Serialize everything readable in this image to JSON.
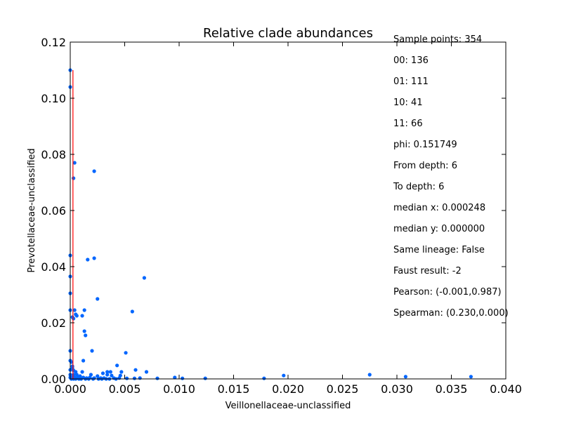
{
  "chart_data": {
    "type": "scatter",
    "title": "Relative clade abundances",
    "xlabel": "Veillonellaceae-unclassified",
    "ylabel": "Prevotellaceae-unclassified",
    "xlim": [
      0.0,
      0.04
    ],
    "ylim": [
      0.0,
      0.12
    ],
    "x_ticks": [
      "0.000",
      "0.005",
      "0.010",
      "0.015",
      "0.020",
      "0.025",
      "0.030",
      "0.035",
      "0.040"
    ],
    "y_ticks": [
      "0.00",
      "0.02",
      "0.04",
      "0.06",
      "0.08",
      "0.10",
      "0.12"
    ],
    "grid": false,
    "point_color": "#0066ff",
    "median_line_color": "#ff0000",
    "median_x": 0.000248,
    "annotations": [
      "Sample points: 354",
      "00: 136",
      "01: 111",
      "10: 41",
      "11: 66",
      "phi: 0.151749",
      "From depth: 6",
      "To depth: 6",
      "median x: 0.000248",
      "median y: 0.000000",
      "Same lineage: False",
      "Faust result: -2",
      "Pearson: (-0.001,0.987)",
      "Spearman: (0.230,0.000)"
    ],
    "points": [
      [
        0.0,
        0.11
      ],
      [
        0.0,
        0.104
      ],
      [
        0.0004,
        0.077
      ],
      [
        0.0003,
        0.0715
      ],
      [
        0.0022,
        0.074
      ],
      [
        0.0,
        0.044
      ],
      [
        0.0,
        0.0365
      ],
      [
        0.0,
        0.0305
      ],
      [
        0.0022,
        0.043
      ],
      [
        0.0016,
        0.0425
      ],
      [
        0.0068,
        0.036
      ],
      [
        0.0025,
        0.0285
      ],
      [
        0.0,
        0.0245
      ],
      [
        0.0004,
        0.0245
      ],
      [
        0.0013,
        0.0245
      ],
      [
        0.0057,
        0.024
      ],
      [
        0.0005,
        0.023
      ],
      [
        0.0006,
        0.0225
      ],
      [
        0.0011,
        0.0225
      ],
      [
        0.0002,
        0.022
      ],
      [
        0.0003,
        0.0215
      ],
      [
        0.0013,
        0.017
      ],
      [
        0.0014,
        0.0155
      ],
      [
        0.0,
        0.01
      ],
      [
        0.002,
        0.01
      ],
      [
        0.0051,
        0.0093
      ],
      [
        0.0,
        0.0065
      ],
      [
        0.0001,
        0.006
      ],
      [
        0.0012,
        0.0065
      ],
      [
        0.0043,
        0.0048
      ],
      [
        0.0002,
        0.0045
      ],
      [
        0.0002,
        0.0038
      ],
      [
        0.0,
        0.0032
      ],
      [
        0.0003,
        0.003
      ],
      [
        0.0005,
        0.0025
      ],
      [
        0.0011,
        0.0025
      ],
      [
        0.003,
        0.002
      ],
      [
        0.0034,
        0.0025
      ],
      [
        0.0037,
        0.0025
      ],
      [
        0.0047,
        0.0025
      ],
      [
        0.006,
        0.0032
      ],
      [
        0.007,
        0.0025
      ],
      [
        0.0,
        0.0015
      ],
      [
        0.0003,
        0.0015
      ],
      [
        0.0006,
        0.0015
      ],
      [
        0.0009,
        0.001
      ],
      [
        0.0019,
        0.0015
      ],
      [
        0.0025,
        0.001
      ],
      [
        0.0034,
        0.0015
      ],
      [
        0.0038,
        0.0012
      ],
      [
        0.0046,
        0.0012
      ],
      [
        0.0,
        0.0005
      ],
      [
        0.0002,
        0.0005
      ],
      [
        0.0004,
        0.0005
      ],
      [
        0.0007,
        0.0005
      ],
      [
        0.0012,
        0.0005
      ],
      [
        0.0015,
        0.0003
      ],
      [
        0.0018,
        0.0005
      ],
      [
        0.0022,
        0.0003
      ],
      [
        0.0028,
        0.0003
      ],
      [
        0.0031,
        0.0003
      ],
      [
        0.004,
        0.0003
      ],
      [
        0.0045,
        0.0003
      ],
      [
        0.0052,
        0.0002
      ],
      [
        0.0059,
        0.0002
      ],
      [
        0.0064,
        0.0003
      ],
      [
        0.008,
        0.0002
      ],
      [
        0.0096,
        0.0005
      ],
      [
        0.0103,
        0.0002
      ],
      [
        0.0124,
        0.0002
      ],
      [
        0.0178,
        0.0002
      ],
      [
        0.0196,
        0.0012
      ],
      [
        0.0275,
        0.0015
      ],
      [
        0.0308,
        0.0008
      ],
      [
        0.0368,
        0.0008
      ],
      [
        0.0001,
        0.0
      ],
      [
        0.0003,
        0.0
      ],
      [
        0.0005,
        0.0
      ],
      [
        0.0008,
        0.0
      ],
      [
        0.001,
        0.0
      ],
      [
        0.0014,
        0.0
      ],
      [
        0.0017,
        0.0
      ],
      [
        0.0021,
        0.0
      ],
      [
        0.0026,
        0.0
      ],
      [
        0.0029,
        0.0
      ],
      [
        0.0033,
        0.0
      ],
      [
        0.0036,
        0.0
      ],
      [
        0.0042,
        0.0
      ]
    ]
  }
}
